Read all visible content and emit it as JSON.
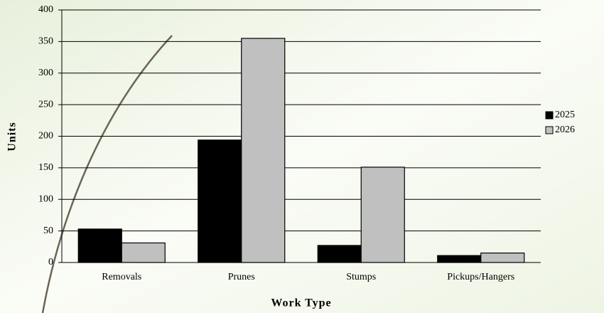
{
  "chart_data": {
    "type": "bar",
    "x_label": "Work Type",
    "y_label": "Units",
    "categories": [
      "Removals",
      "Prunes",
      "Stumps",
      "Pickups/Hangers"
    ],
    "series": [
      {
        "name": "2025",
        "color": "#000000",
        "values": [
          53,
          194,
          27,
          11
        ]
      },
      {
        "name": "2026",
        "color": "#c0c0c0",
        "values": [
          31,
          355,
          151,
          15
        ]
      }
    ],
    "ylim": [
      0,
      400
    ],
    "yticks": [
      0,
      50,
      100,
      150,
      200,
      250,
      300,
      350,
      400
    ],
    "grid": true,
    "legend": "right"
  }
}
